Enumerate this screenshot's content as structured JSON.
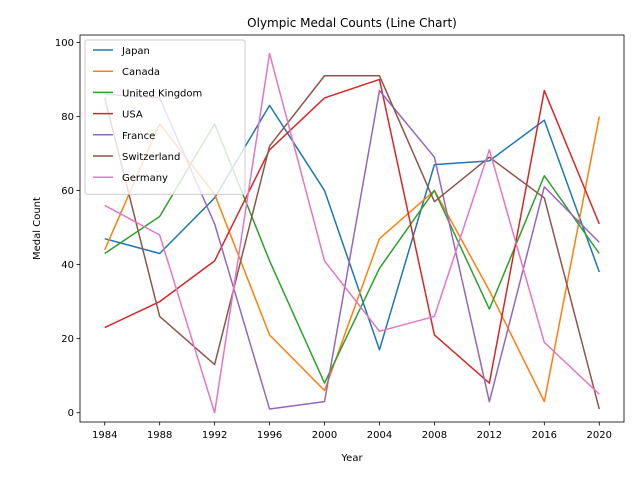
{
  "chart_data": {
    "type": "line",
    "title": "Olympic Medal Counts (Line Chart)",
    "xlabel": "Year",
    "ylabel": "Medal Count",
    "x": [
      1984,
      1988,
      1992,
      1996,
      2000,
      2004,
      2008,
      2012,
      2016,
      2020
    ],
    "xticks": [
      "1984",
      "1988",
      "1992",
      "1996",
      "2000",
      "2004",
      "2008",
      "2012",
      "2016",
      "2020"
    ],
    "yticks": [
      "0",
      "20",
      "40",
      "60",
      "80",
      "100"
    ],
    "ylim": [
      -2.5,
      102
    ],
    "grid": false,
    "legend_position": "upper-left",
    "series": [
      {
        "name": "Japan",
        "color": "#1f77b4",
        "values": [
          47,
          43,
          58,
          83,
          60,
          17,
          67,
          68,
          79,
          38
        ]
      },
      {
        "name": "Canada",
        "color": "#ff7f0e",
        "values": [
          44,
          78,
          59,
          21,
          6,
          47,
          60,
          33,
          3,
          80
        ]
      },
      {
        "name": "United Kingdom",
        "color": "#2ca02c",
        "values": [
          43,
          53,
          78,
          41,
          8,
          39,
          60,
          28,
          64,
          43
        ]
      },
      {
        "name": "USA",
        "color": "#d62728",
        "values": [
          23,
          30,
          41,
          71,
          85,
          90,
          21,
          8,
          87,
          51
        ]
      },
      {
        "name": "France",
        "color": "#9467bd",
        "values": [
          86,
          85,
          51,
          1,
          3,
          87,
          69,
          3,
          61,
          46
        ]
      },
      {
        "name": "Switzerland",
        "color": "#8c564b",
        "values": [
          85,
          26,
          13,
          72,
          91,
          91,
          57,
          69,
          58,
          1
        ]
      },
      {
        "name": "Germany",
        "color": "#e377c2",
        "values": [
          56,
          48,
          0,
          97,
          41,
          22,
          26,
          71,
          19,
          5
        ]
      }
    ]
  }
}
